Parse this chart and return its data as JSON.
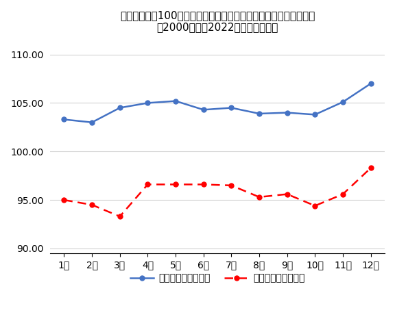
{
  "title_line1": "前年末終値を100と基準化した日経平均株価の月足高値安値の推移",
  "title_line2": "（2000年から2022年までの平均）",
  "x_labels": [
    "1月",
    "2月",
    "3月",
    "4月",
    "5月",
    "6月",
    "7月",
    "8月",
    "9月",
    "10月",
    "11月",
    "12月"
  ],
  "high_values": [
    103.3,
    103.0,
    104.5,
    105.0,
    105.2,
    104.3,
    104.5,
    103.9,
    104.0,
    103.8,
    105.1,
    107.0
  ],
  "low_values": [
    95.0,
    94.5,
    93.3,
    96.6,
    96.6,
    96.6,
    96.5,
    95.3,
    95.6,
    94.4,
    95.6,
    98.3
  ],
  "high_color": "#4472C4",
  "low_color": "#FF0000",
  "high_label": "基準値高値（平均）",
  "low_label": "基準値安値（平均）",
  "ylim": [
    89.5,
    111.5
  ],
  "yticks": [
    90.0,
    95.0,
    100.0,
    105.0,
    110.0
  ],
  "background_color": "#FFFFFF",
  "grid_color": "#D3D3D3",
  "title_fontsize": 11,
  "axis_fontsize": 10,
  "legend_fontsize": 10
}
